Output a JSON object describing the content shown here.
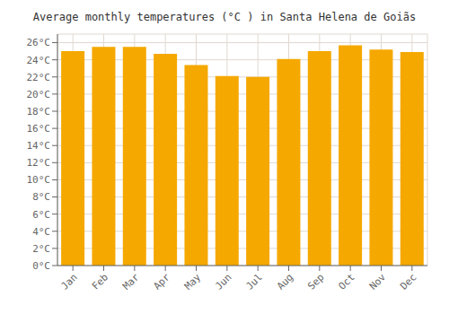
{
  "chart_data": {
    "type": "bar",
    "title": "Average monthly temperatures (°C ) in Santa Helena de Goiãs",
    "categories": [
      "Jan",
      "Feb",
      "Mar",
      "Apr",
      "May",
      "Jun",
      "Jul",
      "Aug",
      "Sep",
      "Oct",
      "Nov",
      "Dec"
    ],
    "values": [
      25.0,
      25.5,
      25.5,
      24.7,
      23.4,
      22.1,
      22.0,
      24.1,
      25.0,
      25.7,
      25.2,
      24.9
    ],
    "color": "#F5A800",
    "ylim": [
      0,
      27
    ],
    "yticks": [
      {
        "value": 0,
        "label": "0°C"
      },
      {
        "value": 2,
        "label": "2°C"
      },
      {
        "value": 4,
        "label": "4°C"
      },
      {
        "value": 6,
        "label": "6°C"
      },
      {
        "value": 8,
        "label": "8°C"
      },
      {
        "value": 10,
        "label": "10°C"
      },
      {
        "value": 12,
        "label": "12°C"
      },
      {
        "value": 14,
        "label": "14°C"
      },
      {
        "value": 16,
        "label": "16°C"
      },
      {
        "value": 18,
        "label": "18°C"
      },
      {
        "value": 20,
        "label": "20°C"
      },
      {
        "value": 22,
        "label": "22°C"
      },
      {
        "value": 24,
        "label": "24°C"
      },
      {
        "value": 26,
        "label": "26°C"
      }
    ],
    "grid": true
  }
}
